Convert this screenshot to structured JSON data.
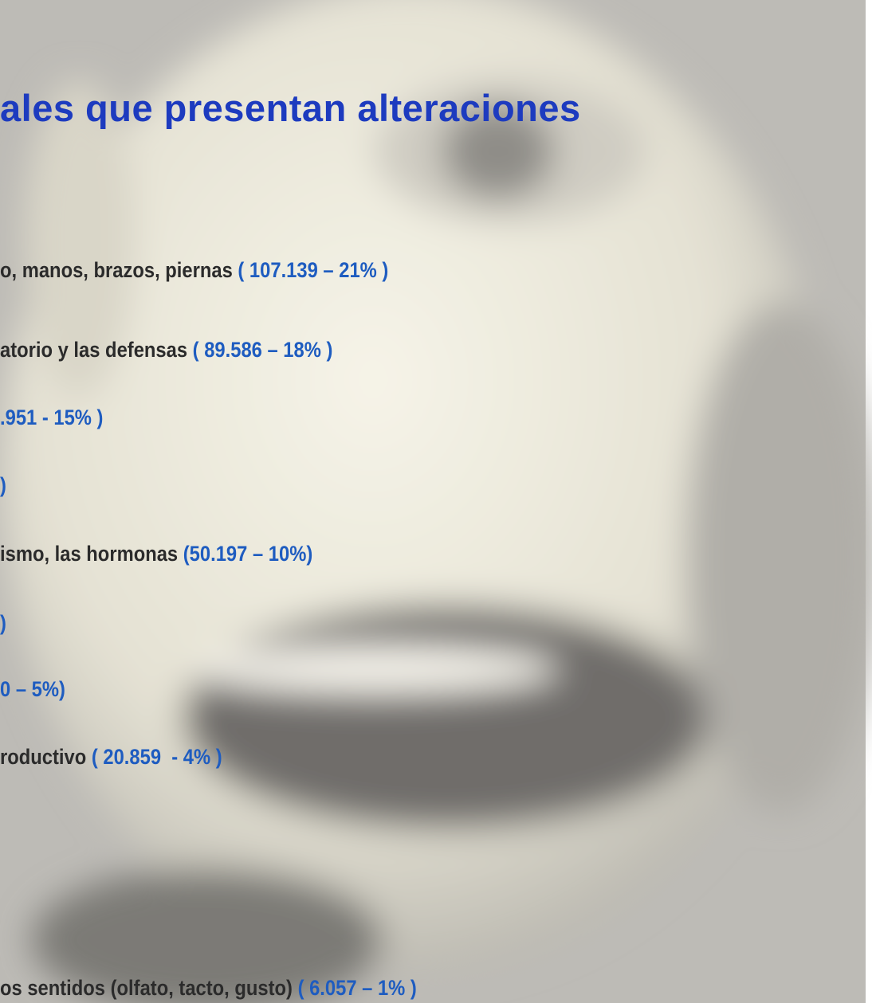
{
  "title": "ales que presentan alteraciones",
  "items": [
    {
      "text": "o, manos, brazos, piernas",
      "figure": "( 107.139 – 21% )"
    },
    {
      "text": "atorio y las defensas",
      "figure": "( 89.586 – 18% )"
    },
    {
      "figure": ".951 - 15% )"
    },
    {
      "figure": ")"
    },
    {
      "text": "ismo, las hormonas",
      "figure": "(50.197 – 10%)"
    },
    {
      "figure": ")"
    },
    {
      "figure": "0 – 5%)"
    },
    {
      "text": "roductivo",
      "figure": "( 20.859  - 4% )"
    },
    {
      "text": "os sentidos (olfato, tacto, gusto)",
      "figure": "( 6.057 – 1% )"
    }
  ]
}
